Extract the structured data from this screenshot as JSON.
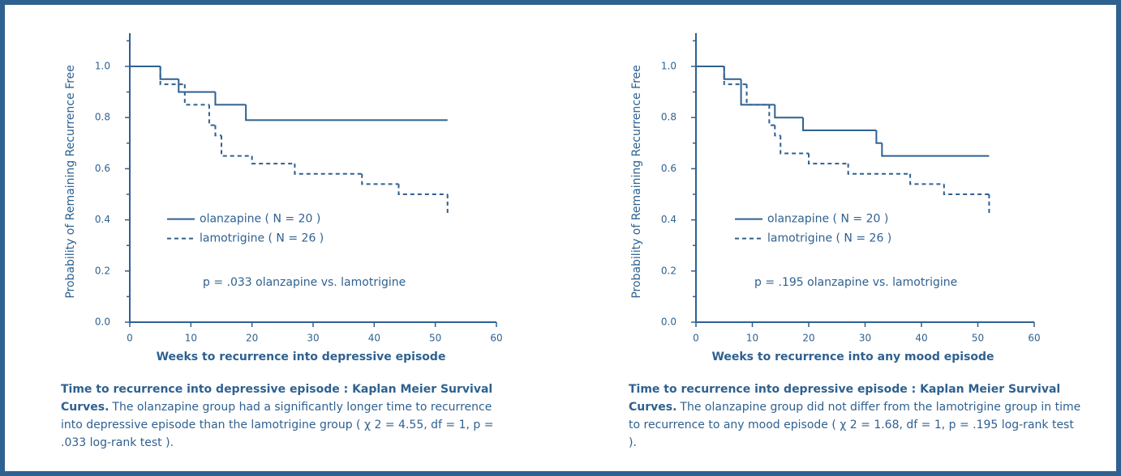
{
  "chart_data": [
    {
      "type": "step",
      "ylabel": "Probability of Remaining Recurrence Free",
      "xlabel": "Weeks to recurrence into depressive episode",
      "xlim": [
        0,
        60
      ],
      "xticks": [
        0,
        10,
        20,
        30,
        40,
        50,
        60
      ],
      "ylim": [
        0,
        1.13
      ],
      "yticks": [
        {
          "value": 0,
          "label": "0.0"
        },
        0.2,
        0.4,
        0.6,
        0.8,
        {
          "value": 1,
          "label": "1.0"
        }
      ],
      "yminor": [
        0.1,
        0.3,
        0.5,
        0.7,
        0.9,
        1.1
      ],
      "series": [
        {
          "name": "olanzapine ( N = 20 )",
          "color": "#2f6190",
          "dashed": false,
          "x": [
            0,
            5,
            8,
            14,
            19,
            52
          ],
          "values": [
            1.0,
            0.95,
            0.9,
            0.85,
            0.79,
            0.79
          ]
        },
        {
          "name": "lamotrigine ( N = 26 )",
          "color": "#2f6190",
          "dashed": true,
          "x": [
            0,
            5,
            9,
            13,
            14,
            15,
            20,
            27,
            38,
            44,
            52
          ],
          "values": [
            1.0,
            0.93,
            0.85,
            0.77,
            0.73,
            0.65,
            0.62,
            0.58,
            0.54,
            0.5,
            0.42
          ]
        }
      ],
      "annotation": "p = .033 olanzapine vs. lamotrigine",
      "caption_title": "Time to recurrence into depressive episode : Kaplan Meier Survival Curves.",
      "caption": "The olanzapine group had a significantly longer time to recurrence into depressive episode than the lamotrigine group ( χ 2 = 4.55, df = 1, p = .033 log-rank test )."
    },
    {
      "type": "step",
      "ylabel": "Probability of Remaining Recurrence Free",
      "xlabel": "Weeks to recurrence into any mood episode",
      "xlim": [
        0,
        60
      ],
      "xticks": [
        0,
        10,
        20,
        30,
        40,
        50,
        60
      ],
      "ylim": [
        0,
        1.13
      ],
      "yticks": [
        {
          "value": 0,
          "label": "0.0"
        },
        0.2,
        0.4,
        0.6,
        0.8,
        {
          "value": 1,
          "label": "1.0"
        }
      ],
      "yminor": [
        0.1,
        0.3,
        0.5,
        0.7,
        0.9,
        1.1
      ],
      "series": [
        {
          "name": "olanzapine ( N = 20 )",
          "color": "#2f6190",
          "dashed": false,
          "x": [
            0,
            5,
            8,
            14,
            19,
            32,
            33,
            52
          ],
          "values": [
            1.0,
            0.95,
            0.85,
            0.8,
            0.75,
            0.7,
            0.65,
            0.65
          ]
        },
        {
          "name": "lamotrigine ( N = 26 )",
          "color": "#2f6190",
          "dashed": true,
          "x": [
            0,
            5,
            9,
            13,
            14,
            15,
            20,
            27,
            38,
            44,
            52
          ],
          "values": [
            1.0,
            0.93,
            0.85,
            0.77,
            0.73,
            0.66,
            0.62,
            0.58,
            0.54,
            0.5,
            0.42
          ]
        }
      ],
      "annotation": "p = .195 olanzapine vs. lamotrigine",
      "caption_title": "Time to recurrence into depressive episode : Kaplan Meier Survival Curves.",
      "caption": "The olanzapine group did not differ from the lamotrigine group in time to recurrence to any mood episode ( χ 2 = 1.68, df = 1, p = .195 log-rank test )."
    }
  ]
}
